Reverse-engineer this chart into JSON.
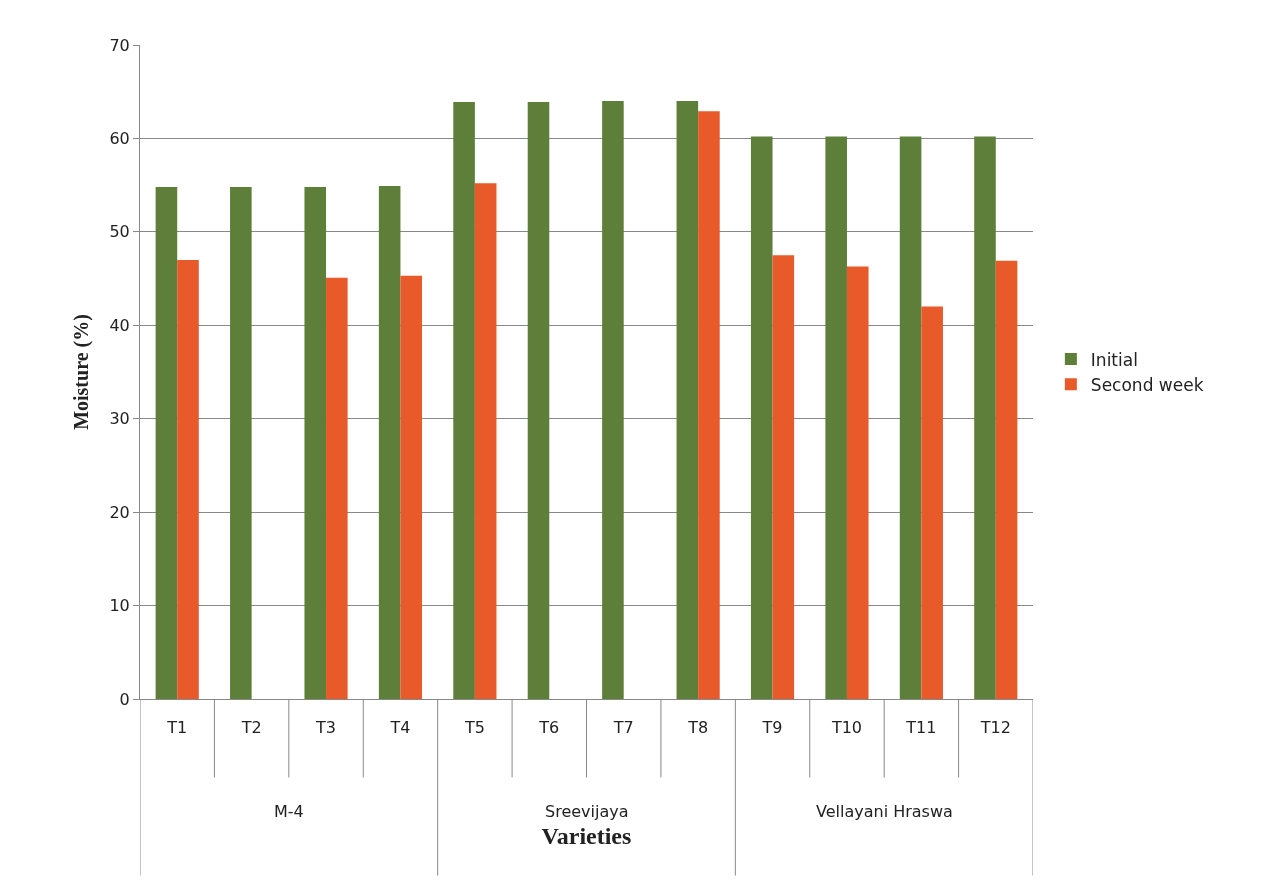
{
  "chart_data": {
    "type": "bar",
    "xlabel": "Varieties",
    "ylabel": "Moisture (%)",
    "categories": [
      "T1",
      "T2",
      "T3",
      "T4",
      "T5",
      "T6",
      "T7",
      "T8",
      "T9",
      "T10",
      "T11",
      "T12"
    ],
    "series": [
      {
        "name": "Initial",
        "color": "#5e7f3a",
        "values": [
          54.8,
          54.8,
          54.8,
          54.9,
          63.9,
          63.9,
          64.0,
          64.0,
          60.2,
          60.2,
          60.2,
          60.2
        ]
      },
      {
        "name": "Second week",
        "color": "#e85a2a",
        "values": [
          47.0,
          null,
          45.1,
          45.3,
          55.2,
          null,
          null,
          62.9,
          47.5,
          46.3,
          42.0,
          46.9
        ]
      }
    ],
    "annotations": [
      "M-4",
      "Sreevijaya",
      "Vellayani Hraswa"
    ],
    "ylim": [
      0,
      70
    ],
    "yticks": [
      0,
      10,
      20,
      30,
      40,
      50,
      60,
      70
    ],
    "grid": "y",
    "legend": "right"
  }
}
